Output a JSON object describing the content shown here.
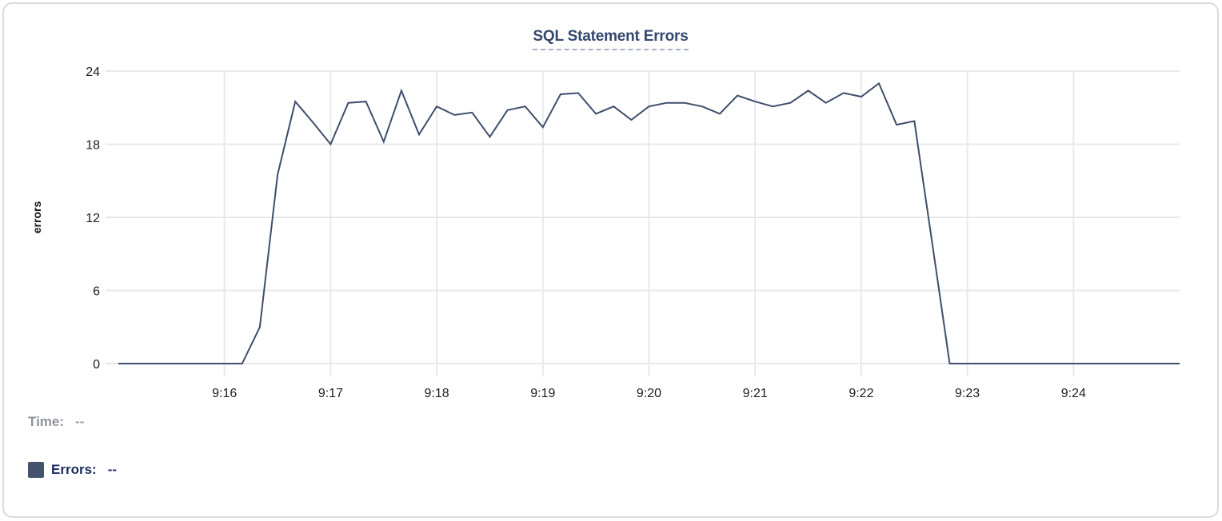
{
  "chart": {
    "title": "SQL Statement Errors"
  },
  "footer": {
    "time_label": "Time:",
    "time_value": "--",
    "errors_label": "Errors:",
    "errors_value": "--"
  },
  "colors": {
    "line": "#3e4e6c",
    "grid": "#e8e9eb",
    "tick_text": "#1d1e20",
    "axis_label_text": "#111111",
    "title_text": "#33486d",
    "legend_swatch": "#45526e"
  },
  "chart_data": {
    "type": "line",
    "title": "SQL Statement Errors",
    "xlabel": "",
    "ylabel": "errors",
    "series_name": "Errors",
    "x_start": "9:15:00",
    "x_end": "9:25:00",
    "interval_seconds": 10,
    "x_tick_labels": [
      "9:16",
      "9:17",
      "9:18",
      "9:19",
      "9:20",
      "9:21",
      "9:22",
      "9:23",
      "9:24"
    ],
    "y_ticks": [
      0,
      6,
      12,
      18,
      24
    ],
    "ylim": [
      0,
      24
    ],
    "grid": true,
    "legend_position": "bottom-left",
    "values": [
      0,
      0,
      0,
      0,
      0,
      0,
      0,
      0,
      3,
      15.5,
      21.5,
      19.8,
      18,
      21.4,
      21.5,
      18.2,
      22.4,
      18.8,
      21.1,
      20.4,
      20.6,
      18.6,
      20.8,
      21.1,
      19.4,
      22.1,
      22.2,
      20.5,
      21.1,
      20,
      21.1,
      21.4,
      21.4,
      21.1,
      20.5,
      22,
      21.5,
      21.1,
      21.4,
      22.4,
      21.4,
      22.2,
      21.9,
      23,
      19.6,
      19.9,
      10,
      0,
      0,
      0,
      0,
      0,
      0,
      0,
      0,
      0,
      0,
      0,
      0,
      0,
      0
    ]
  }
}
